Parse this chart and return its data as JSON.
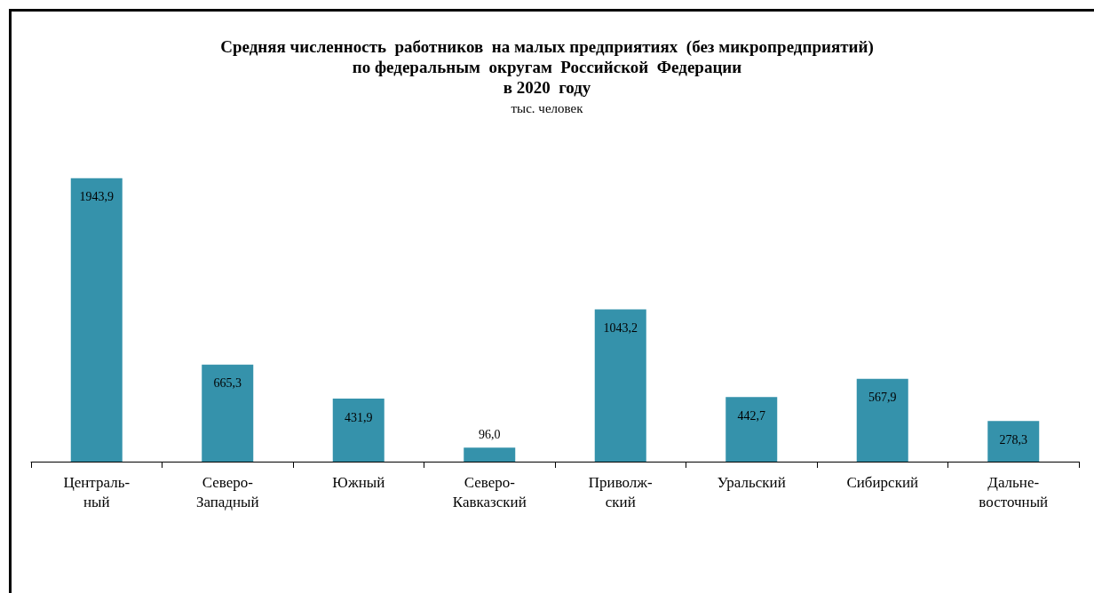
{
  "chart_data": {
    "type": "bar",
    "title": "Средняя численность  работников  на малых предприятиях  (без микропредприятий)\nпо федеральным  округам  Российской  Федерации\nв 2020  году",
    "subtitle": "тыс. человек",
    "categories": [
      "Централь-\nный",
      "Северо-\nЗападный",
      "Южный",
      "Северо-\nКавказский",
      "Приволж-\nский",
      "Уральский",
      "Сибирский",
      "Дальне-\nвосточный"
    ],
    "values": [
      1943.9,
      665.3,
      431.9,
      96.0,
      1043.2,
      442.7,
      567.9,
      278.3
    ],
    "value_labels": [
      "1943,9",
      "665,3",
      "431,9",
      "96,0",
      "1043,2",
      "442,7",
      "567,9",
      "278,3"
    ],
    "color": "#3592ab"
  }
}
